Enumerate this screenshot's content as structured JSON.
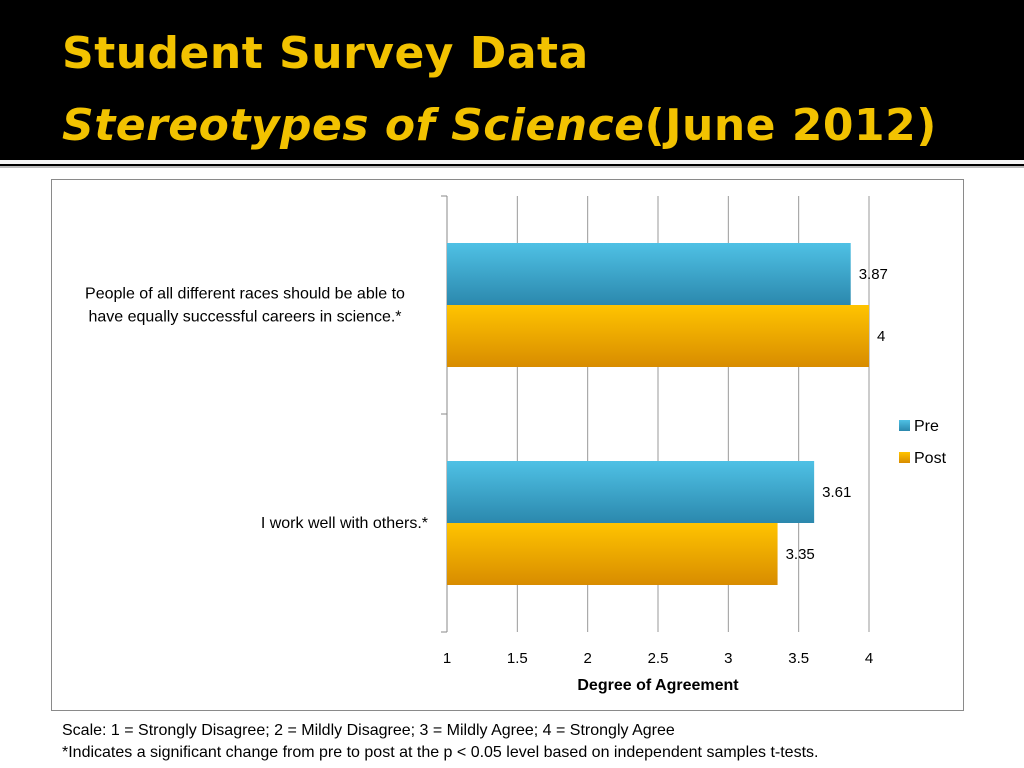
{
  "slide": {
    "title_line1": "Student Survey Data",
    "title_line2_italic": "Stereotypes of Science",
    "title_line2_rest": "(June 2012)",
    "note_scale": "Scale: 1 = Strongly Disagree; 2 = Mildly Disagree; 3 = Mildly Agree; 4 = Strongly Agree",
    "note_significance": "*Indicates a significant change from pre to post at the p < 0.05 level based on independent samples t-tests."
  },
  "colors": {
    "pre": "#3aa6cb",
    "post": "#f0a500",
    "title": "#f2c200"
  },
  "chart_data": {
    "type": "bar",
    "orientation": "horizontal",
    "categories": [
      "People of all different races should be able to have equally successful careers in science.*",
      "I work well with others.*"
    ],
    "category_label_lines": [
      [
        "People of all different races should be able to",
        "have equally successful careers in science.*"
      ],
      [
        "I work well with others.*"
      ]
    ],
    "series": [
      {
        "name": "Pre",
        "values": [
          3.87,
          3.61
        ],
        "labels": [
          "3.87",
          "3.61"
        ]
      },
      {
        "name": "Post",
        "values": [
          4,
          3.35
        ],
        "labels": [
          "4",
          "3.35"
        ]
      }
    ],
    "xlabel": "Degree of Agreement",
    "xlim": [
      1,
      4
    ],
    "xticks": [
      1,
      1.5,
      2,
      2.5,
      3,
      3.5,
      4
    ],
    "xtick_labels": [
      "1",
      "1.5",
      "2",
      "2.5",
      "3",
      "3.5",
      "4"
    ],
    "grid": "vertical",
    "legend": "right"
  }
}
